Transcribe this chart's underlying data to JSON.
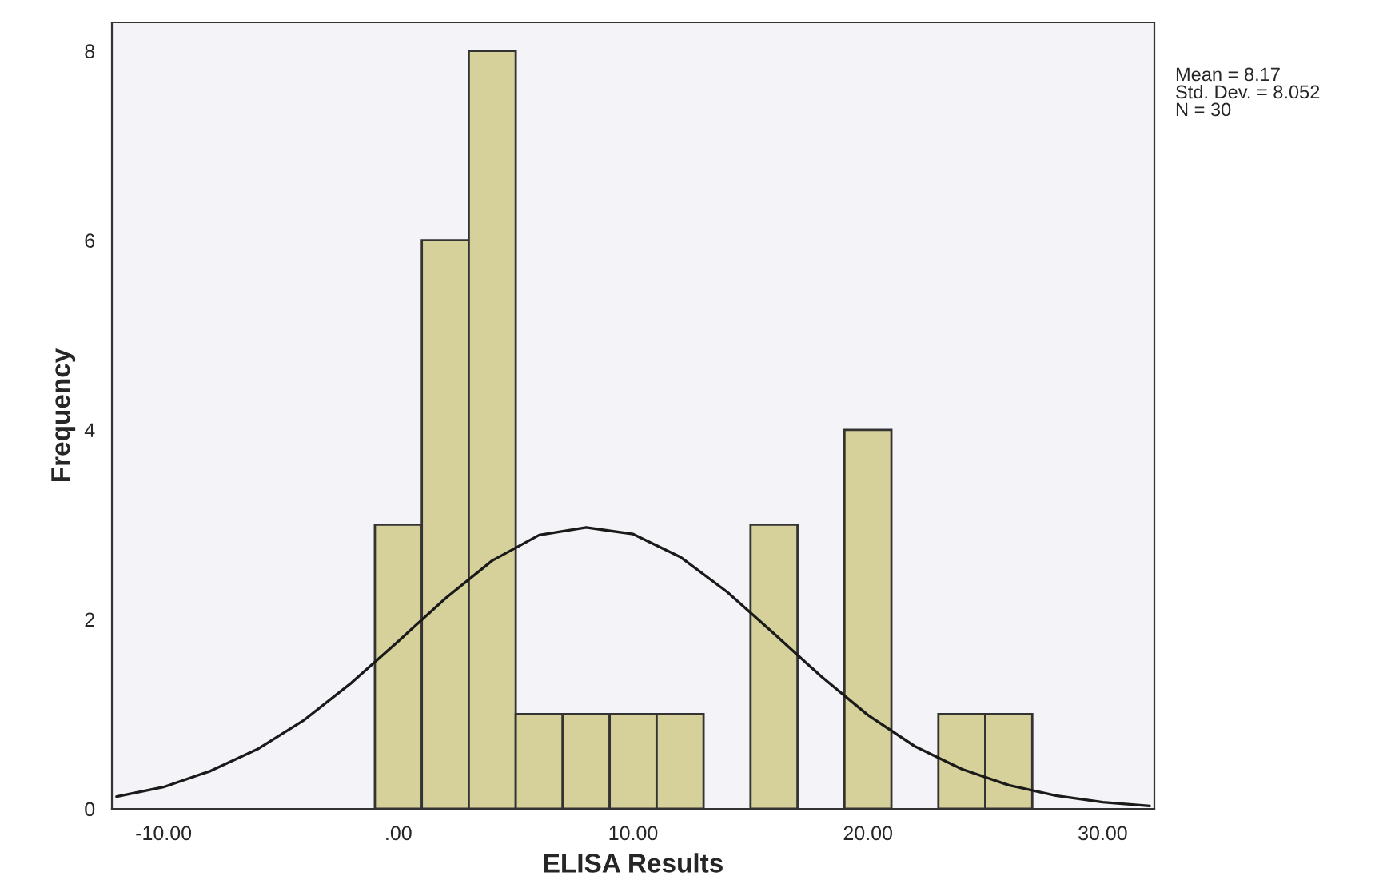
{
  "chart_data": {
    "type": "histogram",
    "xlabel": "ELISA Results",
    "ylabel": "Frequency",
    "bins": [
      -1,
      1,
      3,
      5,
      7,
      9,
      11,
      13,
      15,
      17,
      19,
      21,
      23,
      25,
      27
    ],
    "values": [
      3,
      6,
      8,
      1,
      1,
      1,
      1,
      0,
      3,
      0,
      4,
      0,
      1,
      1
    ],
    "color": "#d6d09a",
    "series": [
      {
        "type": "line",
        "color": "#1a1a1a",
        "x": [
          -12,
          -10,
          -8,
          -6,
          -4,
          -2,
          0,
          2,
          4,
          6,
          8,
          10,
          12,
          14,
          16,
          18,
          20,
          22,
          24,
          26,
          28,
          30,
          32
        ],
        "values": [
          0.13,
          0.23,
          0.4,
          0.63,
          0.94,
          1.33,
          1.77,
          2.22,
          2.62,
          2.89,
          2.97,
          2.9,
          2.66,
          2.29,
          1.85,
          1.4,
          0.99,
          0.66,
          0.42,
          0.25,
          0.14,
          0.07,
          0.03
        ]
      }
    ],
    "xlim": [
      -12.2,
      32.2
    ],
    "xticks": [
      {
        "value": -10,
        "label": "-10.00"
      },
      {
        "value": 0,
        "label": ".00"
      },
      {
        "value": 10,
        "label": "10.00"
      },
      {
        "value": 20,
        "label": "20.00"
      },
      {
        "value": 30,
        "label": "30.00"
      }
    ],
    "ylim": [
      0,
      8.3
    ],
    "yticks": [
      0,
      2,
      4,
      6,
      8
    ],
    "annotations": [
      "Mean = 8.17",
      "Std. Dev. = 8.052",
      "N = 30"
    ],
    "grid": false,
    "legend": false
  }
}
